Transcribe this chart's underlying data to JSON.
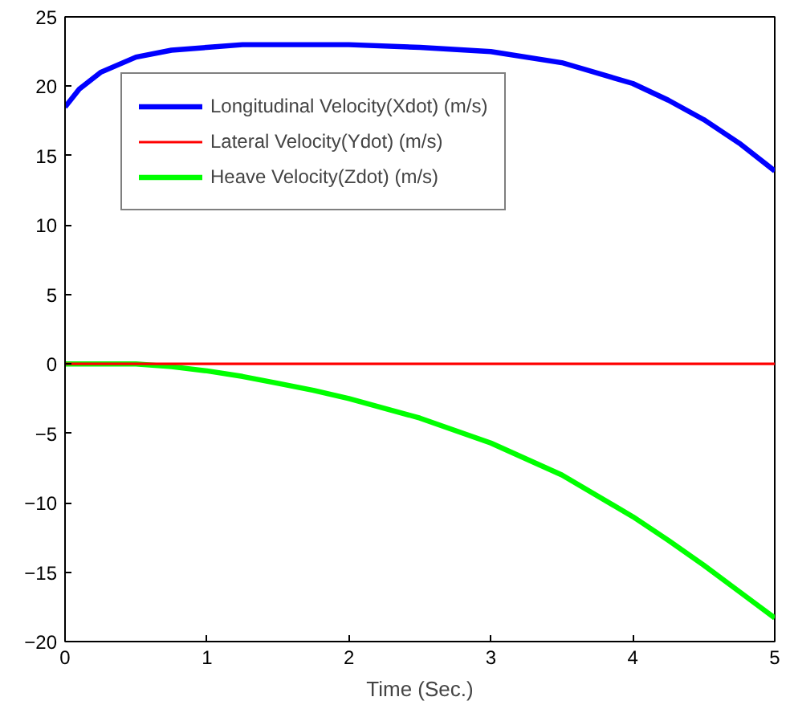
{
  "chart_data": {
    "type": "line",
    "xlabel": "Time (Sec.)",
    "xlim": [
      0,
      5
    ],
    "xticks": [
      0,
      1,
      2,
      3,
      4,
      5
    ],
    "ylim": [
      -20,
      25
    ],
    "yticks": [
      -20,
      -15,
      -10,
      -5,
      0,
      5,
      10,
      15,
      20,
      25
    ],
    "grid": false,
    "legend": "top left",
    "line_style": "solid",
    "marker": "none",
    "x": [
      0,
      0.1,
      0.25,
      0.5,
      0.75,
      1,
      1.25,
      1.5,
      1.75,
      2,
      2.5,
      3,
      3.5,
      4,
      4.25,
      4.5,
      4.75,
      5
    ],
    "series": [
      {
        "name": "Longitudinal Velocity(Xdot) (m/s)",
        "color": "#0000ff",
        "values": [
          18.5,
          19.8,
          21.0,
          22.1,
          22.6,
          22.8,
          23.0,
          23.0,
          23.0,
          23.0,
          22.8,
          22.5,
          21.7,
          20.2,
          19.0,
          17.6,
          15.9,
          13.9
        ]
      },
      {
        "name": "Lateral Velocity(Ydot) (m/s)",
        "color": "#ff0000",
        "values": [
          0,
          0,
          0,
          0,
          0,
          0,
          0,
          0,
          0,
          0,
          0,
          0,
          0,
          0,
          0,
          0,
          0,
          0
        ]
      },
      {
        "name": "Heave Velocity(Zdot) (m/s)",
        "color": "#00ff00",
        "values": [
          0,
          0,
          0,
          0,
          -0.2,
          -0.5,
          -0.9,
          -1.4,
          -1.9,
          -2.5,
          -3.9,
          -5.7,
          -8.0,
          -11.0,
          -12.7,
          -14.5,
          -16.4,
          -18.3
        ]
      }
    ]
  }
}
